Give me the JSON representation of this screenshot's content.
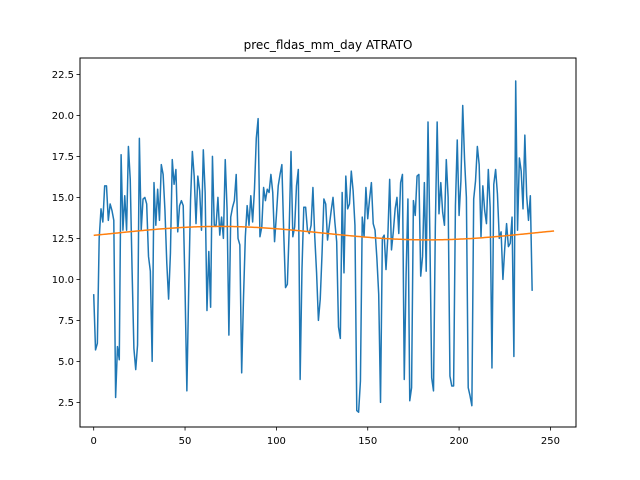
{
  "chart_data": {
    "type": "line",
    "title": "prec_fldas_mm_day ATRATO",
    "xlabel": "",
    "ylabel": "",
    "xlim": [
      -7.5,
      264
    ],
    "ylim": [
      1.0,
      23.5
    ],
    "grid": false,
    "x_ticks": [
      0,
      50,
      100,
      150,
      200,
      250
    ],
    "x_tick_labels": [
      "0",
      "50",
      "100",
      "150",
      "200",
      "250"
    ],
    "y_ticks": [
      2.5,
      5.0,
      7.5,
      10.0,
      12.5,
      15.0,
      17.5,
      20.0,
      22.5
    ],
    "y_tick_labels": [
      "2.5",
      "5.0",
      "7.5",
      "10.0",
      "12.5",
      "15.0",
      "17.5",
      "20.0",
      "22.5"
    ],
    "series": [
      {
        "color": "#1f77b4",
        "x_start": 0,
        "values": [
          9.1,
          5.7,
          6.1,
          12.5,
          14.3,
          13.5,
          15.7,
          15.7,
          13.6,
          14.6,
          14.2,
          13.6,
          2.8,
          5.9,
          5.1,
          17.6,
          13.0,
          15.1,
          13.0,
          18.1,
          16.1,
          10.6,
          5.8,
          4.5,
          6.0,
          18.6,
          13.0,
          14.9,
          15.0,
          14.6,
          11.4,
          10.5,
          5.0,
          15.9,
          13.3,
          15.5,
          13.6,
          17.0,
          16.4,
          14.2,
          11.0,
          8.8,
          11.6,
          17.3,
          15.8,
          16.7,
          12.9,
          14.5,
          14.8,
          14.5,
          9.4,
          3.2,
          9.4,
          14.8,
          17.8,
          16.3,
          13.4,
          16.3,
          15.4,
          13.0,
          17.9,
          15.3,
          8.1,
          11.7,
          8.3,
          17.5,
          13.3,
          13.3,
          15.0,
          12.7,
          13.8,
          12.5,
          17.3,
          14.3,
          6.6,
          13.8,
          14.4,
          14.8,
          16.4,
          12.5,
          12.1,
          4.3,
          8.9,
          12.6,
          14.5,
          13.3,
          15.1,
          13.5,
          15.5,
          18.6,
          19.8,
          12.6,
          13.2,
          15.6,
          14.8,
          15.5,
          15.3,
          16.4,
          15.3,
          12.3,
          13.9,
          15.7,
          16.4,
          17.0,
          12.9,
          9.5,
          9.7,
          13.0,
          17.8,
          12.6,
          13.2,
          15.7,
          16.7,
          3.9,
          10.6,
          14.4,
          14.4,
          13.0,
          12.8,
          13.3,
          15.6,
          12.6,
          10.4,
          7.5,
          8.8,
          11.6,
          14.9,
          14.6,
          12.4,
          13.3,
          14.2,
          15.0,
          13.5,
          12.3,
          7.1,
          6.4,
          15.3,
          10.4,
          16.3,
          14.3,
          14.6,
          16.6,
          15.4,
          13.3,
          2.0,
          1.9,
          3.8,
          13.8,
          12.6,
          15.6,
          13.7,
          14.9,
          15.9,
          13.4,
          13.0,
          11.3,
          9.1,
          2.5,
          12.5,
          12.7,
          10.6,
          12.6,
          16.1,
          11.8,
          12.9,
          14.3,
          15.0,
          12.8,
          15.9,
          16.4,
          3.9,
          10.3,
          14.9,
          2.6,
          3.4,
          14.8,
          13.9,
          16.3,
          16.4,
          10.2,
          11.4,
          15.9,
          10.5,
          19.6,
          12.8,
          4.0,
          3.2,
          13.2,
          19.6,
          14.0,
          15.9,
          14.1,
          13.3,
          17.3,
          15.0,
          4.1,
          3.5,
          3.5,
          14.5,
          18.5,
          13.9,
          16.0,
          20.6,
          17.3,
          15.0,
          3.4,
          2.9,
          2.3,
          14.9,
          16.0,
          18.1,
          17.0,
          12.6,
          15.7,
          14.2,
          13.4,
          16.7,
          14.4,
          4.6,
          15.8,
          16.7,
          15.2,
          12.5,
          12.9,
          10.0,
          11.9,
          13.4,
          12.0,
          12.2,
          13.8,
          5.3,
          22.1,
          13.0,
          17.4,
          16.6,
          14.3,
          18.8,
          15.1,
          13.6,
          15.1,
          9.3
        ]
      },
      {
        "color": "#ff7f0e",
        "trend": {
          "mean": 12.82,
          "amplitude": 0.41,
          "phase": -0.33,
          "period_steps": 228,
          "x_start": 0,
          "x_end": 252
        }
      }
    ]
  }
}
